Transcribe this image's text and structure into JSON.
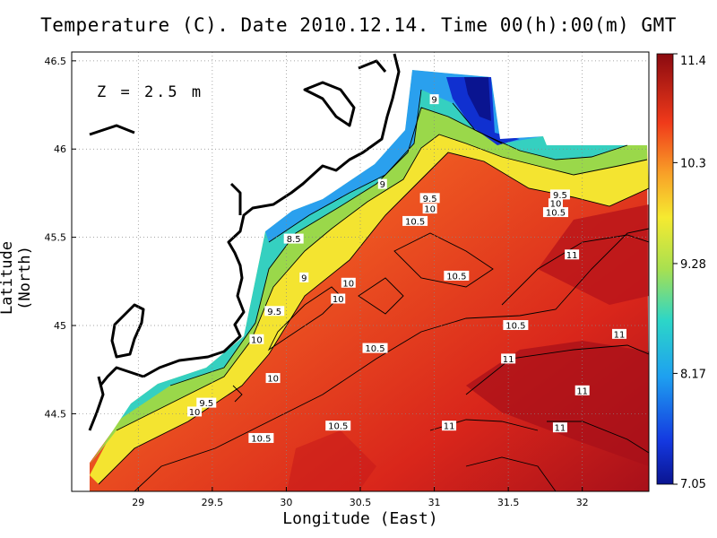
{
  "chart_data": {
    "type": "heatmap",
    "title": "Temperature (C). Date 2010.12.14. Time 00(h):00(m) GMT",
    "xlabel": "Longitude (East)",
    "ylabel": "Latitude (North)",
    "annotation": "Z = 2.5 m",
    "xlim": [
      28.55,
      32.45
    ],
    "ylim": [
      44.06,
      46.55
    ],
    "x_ticks": [
      29,
      29.5,
      30,
      30.5,
      31,
      31.5,
      32
    ],
    "x_tick_labels": [
      "29",
      "29.5",
      "30",
      "30.5",
      "31",
      "31.5",
      "32"
    ],
    "y_ticks": [
      44.5,
      45,
      45.5,
      46,
      46.5
    ],
    "y_tick_labels": [
      "44.5",
      "45",
      "45.5",
      "46",
      "46.5"
    ],
    "grid": true,
    "colorbar": {
      "min": 7.05,
      "max": 11.4,
      "tick_labels": [
        "11.4",
        "10.3",
        "9.28",
        "8.17",
        "7.05"
      ],
      "tick_values": [
        11.4,
        10.3,
        9.28,
        8.17,
        7.05
      ]
    },
    "contour_labels": [
      {
        "text": "9",
        "x": 31.0,
        "y": 46.28
      },
      {
        "text": "9",
        "x": 30.65,
        "y": 45.8
      },
      {
        "text": "9.5",
        "x": 30.97,
        "y": 45.72
      },
      {
        "text": "10",
        "x": 30.97,
        "y": 45.66
      },
      {
        "text": "10.5",
        "x": 30.87,
        "y": 45.59
      },
      {
        "text": "9.5",
        "x": 31.85,
        "y": 45.74
      },
      {
        "text": "10",
        "x": 31.82,
        "y": 45.69
      },
      {
        "text": "10.5",
        "x": 31.82,
        "y": 45.64
      },
      {
        "text": "8.5",
        "x": 30.05,
        "y": 45.49
      },
      {
        "text": "9",
        "x": 30.12,
        "y": 45.27
      },
      {
        "text": "10",
        "x": 30.42,
        "y": 45.24
      },
      {
        "text": "10",
        "x": 30.35,
        "y": 45.15
      },
      {
        "text": "10.5",
        "x": 31.15,
        "y": 45.28
      },
      {
        "text": "9.5",
        "x": 29.92,
        "y": 45.08
      },
      {
        "text": "10",
        "x": 29.8,
        "y": 44.92
      },
      {
        "text": "10.5",
        "x": 31.55,
        "y": 45.0
      },
      {
        "text": "10.5",
        "x": 30.6,
        "y": 44.87
      },
      {
        "text": "11",
        "x": 31.93,
        "y": 45.4
      },
      {
        "text": "11",
        "x": 32.25,
        "y": 44.95
      },
      {
        "text": "11",
        "x": 31.5,
        "y": 44.81
      },
      {
        "text": "10",
        "x": 29.91,
        "y": 44.7
      },
      {
        "text": "11",
        "x": 32.0,
        "y": 44.63
      },
      {
        "text": "9.5",
        "x": 29.46,
        "y": 44.56
      },
      {
        "text": "10",
        "x": 29.38,
        "y": 44.51
      },
      {
        "text": "11",
        "x": 31.1,
        "y": 44.43
      },
      {
        "text": "10.5",
        "x": 30.35,
        "y": 44.43
      },
      {
        "text": "11",
        "x": 31.85,
        "y": 44.42
      },
      {
        "text": "10.5",
        "x": 29.83,
        "y": 44.36
      }
    ]
  }
}
